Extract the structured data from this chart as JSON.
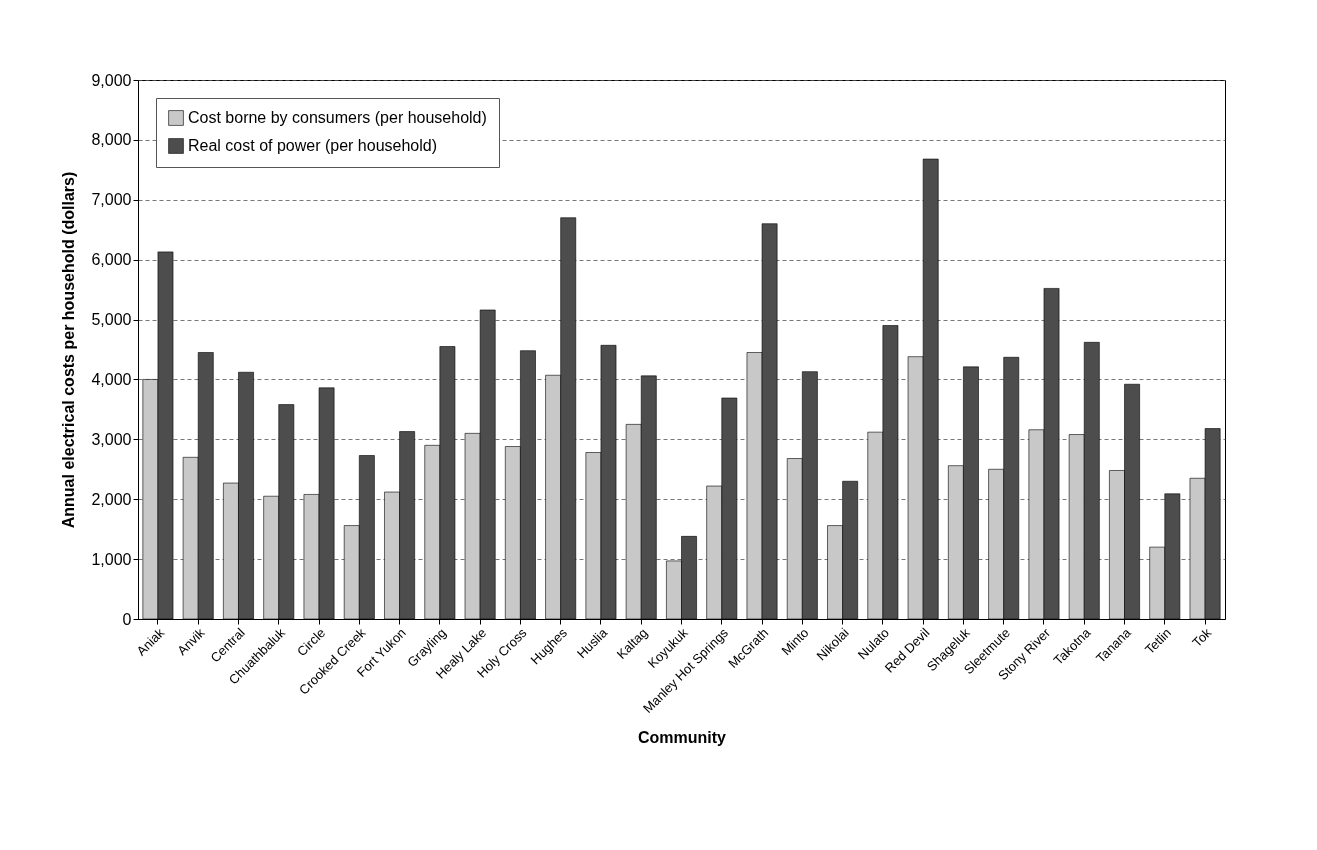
{
  "chart_data": {
    "type": "bar",
    "xlabel": "Community",
    "ylabel": "Annual electrical costs per household (dollars)",
    "categories": [
      "Aniak",
      "Anvik",
      "Central",
      "Chuathbaluk",
      "Circle",
      "Crooked Creek",
      "Fort Yukon",
      "Grayling",
      "Healy Lake",
      "Holy Cross",
      "Hughes",
      "Huslia",
      "Kaltag",
      "Koyukuk",
      "Manley Hot Springs",
      "McGrath",
      "Minto",
      "Nikolai",
      "Nulato",
      "Red Devil",
      "Shageluk",
      "Sleetmute",
      "Stony River",
      "Takotna",
      "Tanana",
      "Tetlin",
      "Tok"
    ],
    "series": [
      {
        "name": "Cost borne by consumers (per household)",
        "color": "#c8c8c8",
        "values": [
          4000,
          2700,
          2270,
          2050,
          2080,
          1560,
          2120,
          2900,
          3100,
          2880,
          4070,
          2780,
          3250,
          970,
          2220,
          4450,
          2680,
          1560,
          3120,
          4380,
          2560,
          2500,
          3160,
          3080,
          2480,
          1200,
          2350
        ]
      },
      {
        "name": "Real cost of power (per household)",
        "color": "#4d4d4d",
        "values": [
          6130,
          4450,
          4120,
          3580,
          3860,
          2730,
          3130,
          4550,
          5160,
          4480,
          6700,
          4570,
          4060,
          1380,
          3690,
          6600,
          4130,
          2300,
          4900,
          7680,
          4210,
          4370,
          5520,
          4620,
          3920,
          2090,
          3180
        ]
      }
    ],
    "ylim": [
      0,
      9000
    ],
    "yticks": [
      0,
      {
        "value": 1000,
        "label": "1,000"
      },
      {
        "value": 2000,
        "label": "2,000"
      },
      {
        "value": 3000,
        "label": "3,000"
      },
      {
        "value": 4000,
        "label": "4,000"
      },
      {
        "value": 5000,
        "label": "5,000"
      },
      {
        "value": 6000,
        "label": "6,000"
      },
      {
        "value": 7000,
        "label": "7,000"
      },
      {
        "value": 8000,
        "label": "8,000"
      },
      {
        "value": 9000,
        "label": "9,000"
      }
    ],
    "grid": "y",
    "legend": "top left"
  }
}
